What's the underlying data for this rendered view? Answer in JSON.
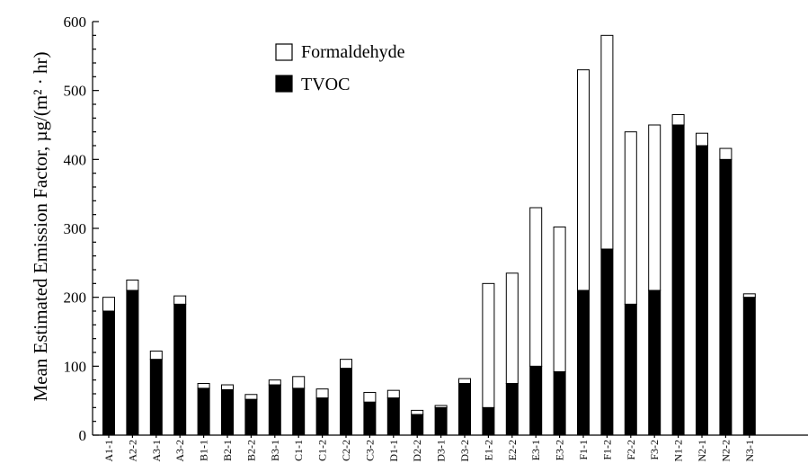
{
  "chart_data": {
    "type": "bar",
    "stacked": true,
    "ylabel": "Mean Estimated Emission Factor, µg/(m² · hr)",
    "ylim": [
      0,
      600
    ],
    "yticks": [
      0,
      100,
      200,
      300,
      400,
      500,
      600
    ],
    "grid": false,
    "legend_position": "top-left",
    "categories": [
      "A1-1",
      "A2-2",
      "A3-1",
      "A3-2",
      "B1-1",
      "B2-1",
      "B2-2",
      "B3-1",
      "C1-1",
      "C1-2",
      "C2-2",
      "C3-2",
      "D1-1",
      "D2-2",
      "D3-1",
      "D3-2",
      "E1-2",
      "E2-2",
      "E3-1",
      "E3-2",
      "F1-1",
      "F1-2",
      "F2-2",
      "F3-2",
      "N1-2",
      "N2-1",
      "N2-2",
      "N3-1"
    ],
    "series": [
      {
        "name": "TVOC",
        "color": "#000000",
        "values": [
          180,
          210,
          110,
          190,
          68,
          66,
          52,
          73,
          68,
          54,
          97,
          48,
          54,
          30,
          40,
          75,
          40,
          75,
          100,
          92,
          210,
          270,
          190,
          210,
          450,
          420,
          400,
          200
        ]
      },
      {
        "name": "Formaldehyde",
        "color": "#ffffff",
        "values": [
          20,
          15,
          12,
          12,
          7,
          7,
          7,
          7,
          17,
          13,
          13,
          14,
          11,
          6,
          3,
          7,
          180,
          160,
          230,
          210,
          320,
          310,
          250,
          240,
          15,
          18,
          16,
          5
        ]
      }
    ]
  }
}
